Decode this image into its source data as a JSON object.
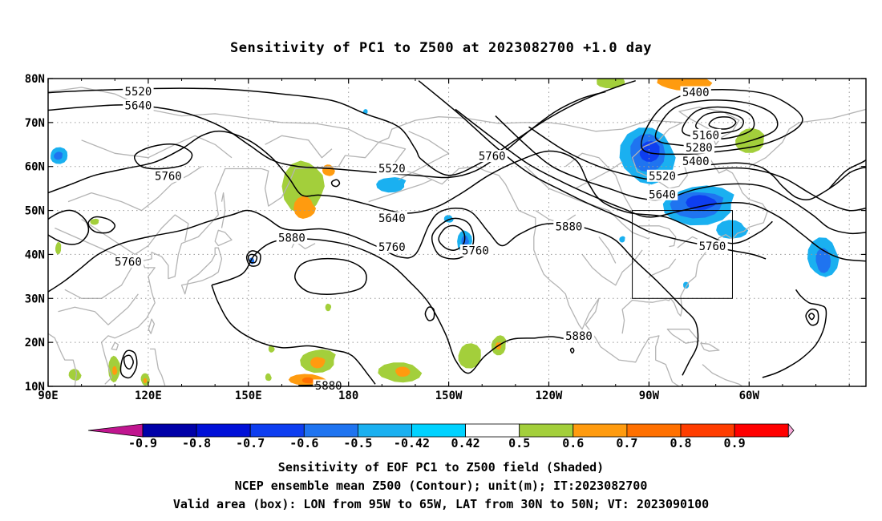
{
  "title": "Sensitivity of PC1 to Z500 at 2023082700 +1.0 day",
  "lat_labels": [
    "80N",
    "70N",
    "60N",
    "50N",
    "40N",
    "30N",
    "20N",
    "10N"
  ],
  "lon_labels": [
    "90E",
    "120E",
    "150E",
    "180",
    "150W",
    "120W",
    "90W",
    "60W"
  ],
  "contour_labels": [
    {
      "text": "5520",
      "lon": 117,
      "lat": 77
    },
    {
      "text": "5640",
      "lon": 117,
      "lat": 73.8
    },
    {
      "text": "5760",
      "lon": 126,
      "lat": 57.8
    },
    {
      "text": "5760",
      "lon": 114,
      "lat": 38.3
    },
    {
      "text": "5880",
      "lon": 163,
      "lat": 43.7
    },
    {
      "text": "5520",
      "lon": 193,
      "lat": 59.5
    },
    {
      "text": "5640",
      "lon": 193,
      "lat": 48.2
    },
    {
      "text": "5760",
      "lon": 193,
      "lat": 41.6
    },
    {
      "text": "5760",
      "lon": 223,
      "lat": 62.3
    },
    {
      "text": "5760",
      "lon": 218,
      "lat": 40.8
    },
    {
      "text": "5880",
      "lon": 246,
      "lat": 46.3
    },
    {
      "text": "5880",
      "lon": 249,
      "lat": 21.4
    },
    {
      "text": "5880",
      "lon": 174,
      "lat": 10.1
    },
    {
      "text": "5400",
      "lon": 284,
      "lat": 76.8
    },
    {
      "text": "5160",
      "lon": 287,
      "lat": 67.1
    },
    {
      "text": "5280",
      "lon": 285,
      "lat": 64.2
    },
    {
      "text": "5400",
      "lon": 284,
      "lat": 61.1
    },
    {
      "text": "5520",
      "lon": 274,
      "lat": 57.8
    },
    {
      "text": "5640",
      "lon": 274,
      "lat": 53.6
    },
    {
      "text": "5760",
      "lon": 289,
      "lat": 41.8
    }
  ],
  "shading_positive": [
    {
      "lon": 167,
      "lat": 55.5,
      "rlon": 7,
      "rlat": 7,
      "level": 0.5
    },
    {
      "lon": 167,
      "lat": 50.5,
      "rlon": 3.5,
      "rlat": 3,
      "level": 0.6
    },
    {
      "lon": 174,
      "lat": 59,
      "rlon": 2,
      "rlat": 1.5,
      "level": 0.6
    },
    {
      "lon": 280,
      "lat": 79,
      "rlon": 9,
      "rlat": 2,
      "level": 0.6
    },
    {
      "lon": 258,
      "lat": 79.2,
      "rlon": 5,
      "rlat": 1.5,
      "level": 0.5
    },
    {
      "lon": 300,
      "lat": 66,
      "rlon": 5,
      "rlat": 3,
      "level": 0.5
    },
    {
      "lon": 171,
      "lat": 16,
      "rlon": 6,
      "rlat": 3,
      "level": 0.5
    },
    {
      "lon": 171,
      "lat": 15.5,
      "rlon": 2.5,
      "rlat": 1.5,
      "level": 0.6
    },
    {
      "lon": 168,
      "lat": 11.5,
      "rlon": 6,
      "rlat": 1.5,
      "level": 0.6
    },
    {
      "lon": 168,
      "lat": 11.3,
      "rlon": 2,
      "rlat": 0.8,
      "level": 0.7
    },
    {
      "lon": 195,
      "lat": 13,
      "rlon": 7,
      "rlat": 2.5,
      "level": 0.5
    },
    {
      "lon": 196,
      "lat": 13.3,
      "rlon": 2.5,
      "rlat": 1.2,
      "level": 0.6
    },
    {
      "lon": 216,
      "lat": 17,
      "rlon": 4,
      "rlat": 3,
      "level": 0.5
    },
    {
      "lon": 225,
      "lat": 19.5,
      "rlon": 2.5,
      "rlat": 2.5,
      "level": 0.5
    },
    {
      "lon": 225,
      "lat": 19.3,
      "rlon": 1,
      "rlat": 1,
      "level": 0.6
    },
    {
      "lon": 110,
      "lat": 14,
      "rlon": 2,
      "rlat": 3.5,
      "level": 0.5
    },
    {
      "lon": 110,
      "lat": 13.5,
      "rlon": 0.8,
      "rlat": 1.2,
      "level": 0.6
    },
    {
      "lon": 98,
      "lat": 12.5,
      "rlon": 2,
      "rlat": 1.5,
      "level": 0.5
    },
    {
      "lon": 119,
      "lat": 11.5,
      "rlon": 1.5,
      "rlat": 1.5,
      "level": 0.5
    },
    {
      "lon": 119,
      "lat": 11.3,
      "rlon": 0.6,
      "rlat": 0.6,
      "level": 0.6
    },
    {
      "lon": 93,
      "lat": 41.5,
      "rlon": 1,
      "rlat": 1.5,
      "level": 0.5
    },
    {
      "lon": 104,
      "lat": 47.5,
      "rlon": 1.5,
      "rlat": 0.8,
      "level": 0.5
    },
    {
      "lon": 174,
      "lat": 28,
      "rlon": 1,
      "rlat": 1,
      "level": 0.5
    },
    {
      "lon": 157,
      "lat": 18.5,
      "rlon": 1,
      "rlat": 1,
      "level": 0.5
    },
    {
      "lon": 156,
      "lat": 12,
      "rlon": 1,
      "rlat": 1,
      "level": 0.5
    }
  ],
  "shading_negative": [
    {
      "lon": 269,
      "lat": 62,
      "rlon": 9,
      "rlat": 7,
      "level": -0.5
    },
    {
      "lon": 269,
      "lat": 63,
      "rlon": 6,
      "rlat": 4.5,
      "level": -0.6
    },
    {
      "lon": 270,
      "lat": 63.5,
      "rlon": 3.5,
      "rlat": 2.5,
      "level": -0.7
    },
    {
      "lon": 285,
      "lat": 51.5,
      "rlon": 12,
      "rlat": 5,
      "level": -0.5
    },
    {
      "lon": 285,
      "lat": 51.5,
      "rlon": 9,
      "rlat": 3.5,
      "level": -0.6
    },
    {
      "lon": 286,
      "lat": 51.8,
      "rlon": 5,
      "rlat": 2,
      "level": -0.7
    },
    {
      "lon": 295,
      "lat": 45.5,
      "rlon": 5,
      "rlat": 2.5,
      "level": -0.5
    },
    {
      "lon": 322,
      "lat": 39,
      "rlon": 5,
      "rlat": 5,
      "level": -0.5
    },
    {
      "lon": 322,
      "lat": 38.5,
      "rlon": 2.5,
      "rlat": 3,
      "level": -0.6
    },
    {
      "lon": 93,
      "lat": 62.5,
      "rlon": 3,
      "rlat": 2,
      "level": -0.5
    },
    {
      "lon": 93,
      "lat": 62.5,
      "rlon": 1.5,
      "rlat": 1,
      "level": -0.6
    },
    {
      "lon": 193,
      "lat": 56,
      "rlon": 5,
      "rlat": 2,
      "level": -0.5
    },
    {
      "lon": 215,
      "lat": 43,
      "rlon": 2.5,
      "rlat": 3,
      "level": -0.5
    },
    {
      "lon": 215,
      "lat": 43,
      "rlon": 1.2,
      "rlat": 1.5,
      "level": -0.6
    },
    {
      "lon": 210,
      "lat": 48,
      "rlon": 1.5,
      "rlat": 1,
      "level": -0.5
    },
    {
      "lon": 151,
      "lat": 38.5,
      "rlon": 0.8,
      "rlat": 0.8,
      "level": -0.6
    },
    {
      "lon": 281,
      "lat": 33,
      "rlon": 1,
      "rlat": 0.8,
      "level": -0.5
    },
    {
      "lon": 185,
      "lat": 72.5,
      "rlon": 0.8,
      "rlat": 0.6,
      "level": -0.5
    },
    {
      "lon": 262,
      "lat": 43.5,
      "rlon": 1,
      "rlat": 0.8,
      "level": -0.5
    }
  ],
  "colorbar": {
    "labels": [
      "-0.9",
      "-0.8",
      "-0.7",
      "-0.6",
      "-0.5",
      "-0.42",
      "0.42",
      "0.5",
      "0.6",
      "0.7",
      "0.8",
      "0.9"
    ],
    "low_end_color": "#c0158f",
    "high_end_color": "#f7a8d8",
    "colors": [
      "#0000a8",
      "#0010d8",
      "#0e3ef0",
      "#1f74f0",
      "#1ab0f0",
      "#00d2ff",
      "#ffffff",
      "#a3cf3b",
      "#ff9b0f",
      "#ff7000",
      "#ff3d00",
      "#ff0000"
    ]
  },
  "box": {
    "lon_min": 265,
    "lon_max": 295,
    "lat_min": 30,
    "lat_max": 50
  },
  "captions": [
    "Sensitivity of EOF PC1 to Z500 field (Shaded)",
    "NCEP ensemble mean Z500 (Contour); unit(m); IT:2023082700",
    "Valid area (box): LON from 95W to 65W, LAT from 30N to 50N; VT: 2023090100"
  ],
  "colors": {
    "contour": "#000000",
    "coastline": "#b4b4b4",
    "grid": "#9a9a9a",
    "frame": "#000000"
  }
}
